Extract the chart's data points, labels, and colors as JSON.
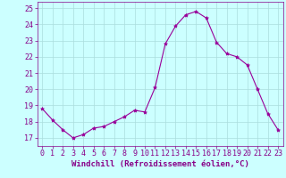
{
  "hours": [
    0,
    1,
    2,
    3,
    4,
    5,
    6,
    7,
    8,
    9,
    10,
    11,
    12,
    13,
    14,
    15,
    16,
    17,
    18,
    19,
    20,
    21,
    22,
    23
  ],
  "values": [
    18.8,
    18.1,
    17.5,
    17.0,
    17.2,
    17.6,
    17.7,
    18.0,
    18.3,
    18.7,
    18.6,
    20.1,
    22.8,
    23.9,
    24.6,
    24.8,
    24.4,
    22.9,
    22.2,
    22.0,
    21.5,
    20.0,
    18.5,
    17.5
  ],
  "xlim": [
    -0.5,
    23.5
  ],
  "ylim": [
    16.5,
    25.4
  ],
  "yticks": [
    17,
    18,
    19,
    20,
    21,
    22,
    23,
    24,
    25
  ],
  "xticks": [
    0,
    1,
    2,
    3,
    4,
    5,
    6,
    7,
    8,
    9,
    10,
    11,
    12,
    13,
    14,
    15,
    16,
    17,
    18,
    19,
    20,
    21,
    22,
    23
  ],
  "line_color": "#990099",
  "marker": "*",
  "marker_size": 3,
  "bg_color": "#ccffff",
  "grid_color": "#aadddd",
  "xlabel": "Windchill (Refroidissement éolien,°C)",
  "xlabel_fontsize": 6.5,
  "tick_fontsize": 6,
  "tick_color": "#880088",
  "label_color": "#880088",
  "spine_color": "#880088"
}
